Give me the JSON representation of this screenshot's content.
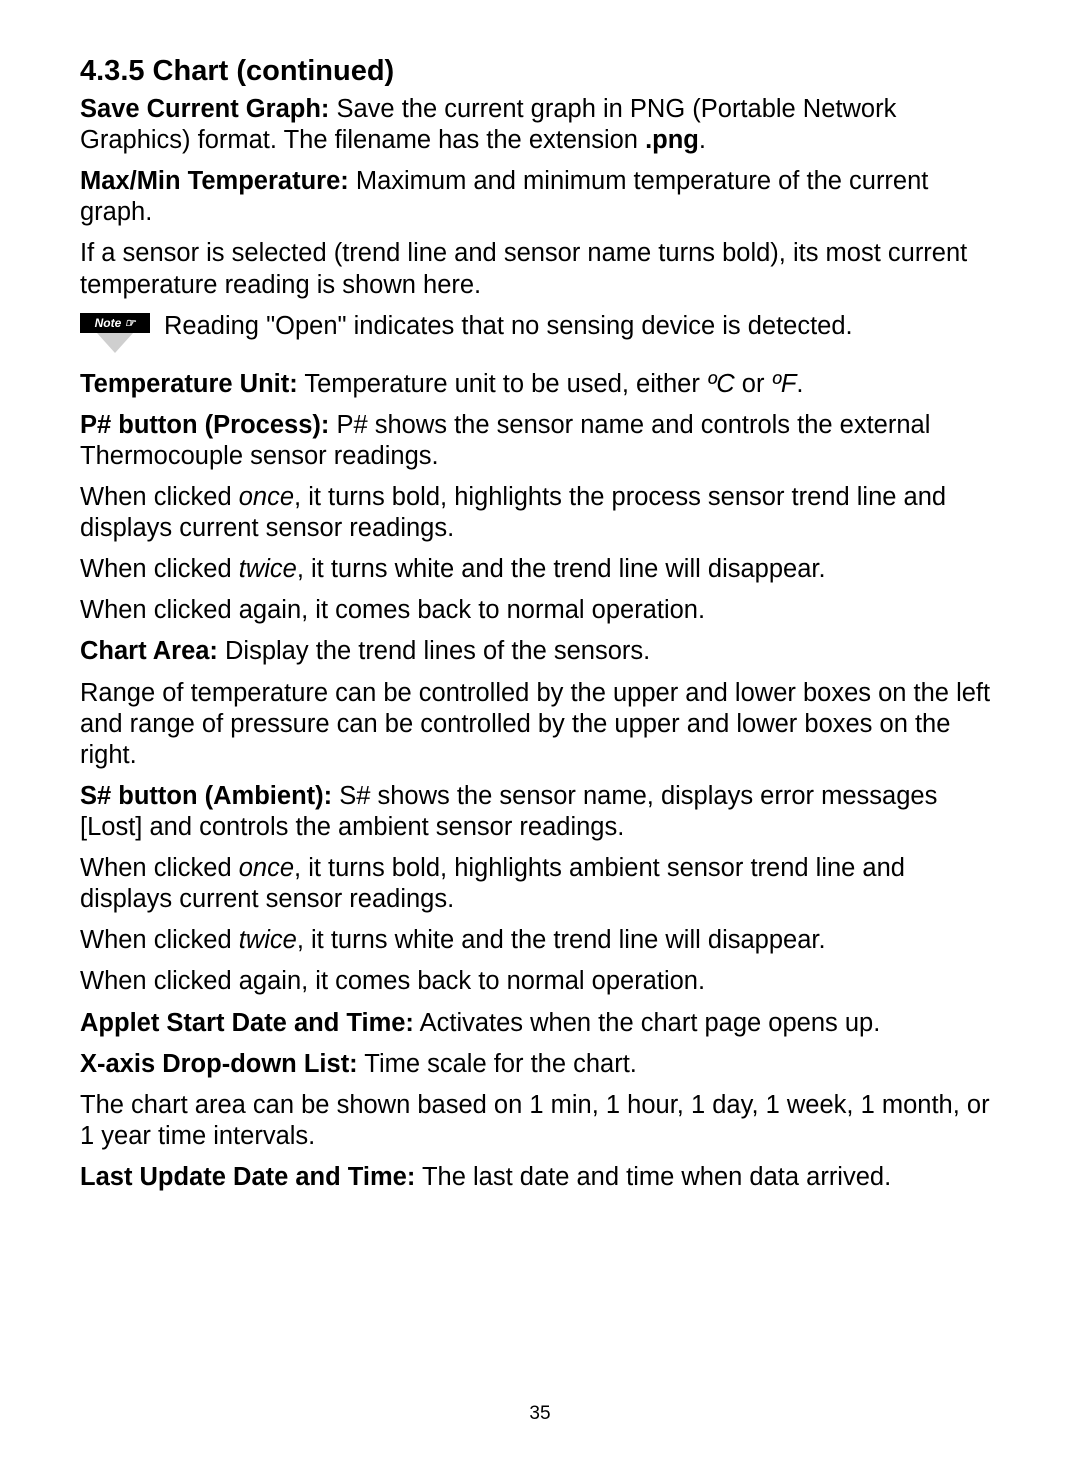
{
  "heading": "4.3.5  Chart (continued)",
  "p1_a": "Save Current Graph:",
  "p1_b": "  Save the current graph in PNG (Portable Network Graphics) format. The filename has the extension ",
  "p1_c": ".png",
  "p1_d": ".",
  "p2_a": "Max/Min Temperature:",
  "p2_b": "  Maximum and minimum temperature of the current graph.",
  "p3": "If a sensor is selected (trend line and sensor name turns bold), its most current temperature reading is shown here.",
  "note_label": "Note ☞",
  "note_text": "Reading \"Open\" indicates that no sensing device is detected.",
  "p4_a": "Temperature Unit:",
  "p4_b": " Temperature unit to be used, either ",
  "p4_c": "ºC",
  "p4_d": " or ",
  "p4_e": "ºF",
  "p4_f": ".",
  "p5_a": "P# button (Process):",
  "p5_b": "  P# shows the sensor name and controls the external Thermocouple sensor readings.",
  "p6_a": "When clicked ",
  "p6_b": "once",
  "p6_c": ", it turns bold, highlights the process sensor trend line and displays current sensor readings.",
  "p7_a": "When clicked ",
  "p7_b": "twice",
  "p7_c": ", it turns white and the trend line will disappear.",
  "p8": "When clicked again, it comes back to normal operation.",
  "p9_a": "Chart Area:",
  "p9_b": "  Display the trend lines of the sensors.",
  "p10": "Range of temperature can be controlled by the upper and lower boxes on the left and range of pressure can be controlled by the upper and lower boxes on the right.",
  "p11_a": "S# button (Ambient):",
  "p11_b": "  S# shows the sensor name, displays error messages [Lost] and controls the ambient sensor readings.",
  "p12_a": "When clicked ",
  "p12_b": "once",
  "p12_c": ", it turns bold, highlights ambient sensor trend line and displays current sensor readings.",
  "p13_a": "When clicked ",
  "p13_b": "twice",
  "p13_c": ", it turns white and the trend line will disappear.",
  "p14": "When clicked again, it comes back to normal operation.",
  "p15_a": "Applet Start Date and Time:",
  "p15_b": "  Activates when the chart page opens up.",
  "p16_a": "X-axis Drop-down List:",
  "p16_b": " Time scale for the chart.",
  "p17": "The chart area can be shown based on 1 min, 1 hour, 1 day, 1 week, 1 month, or 1 year time intervals.",
  "p18_a": "Last Update Date and Time:",
  "p18_b": "  The last date and time when data arrived.",
  "page_number": "35"
}
